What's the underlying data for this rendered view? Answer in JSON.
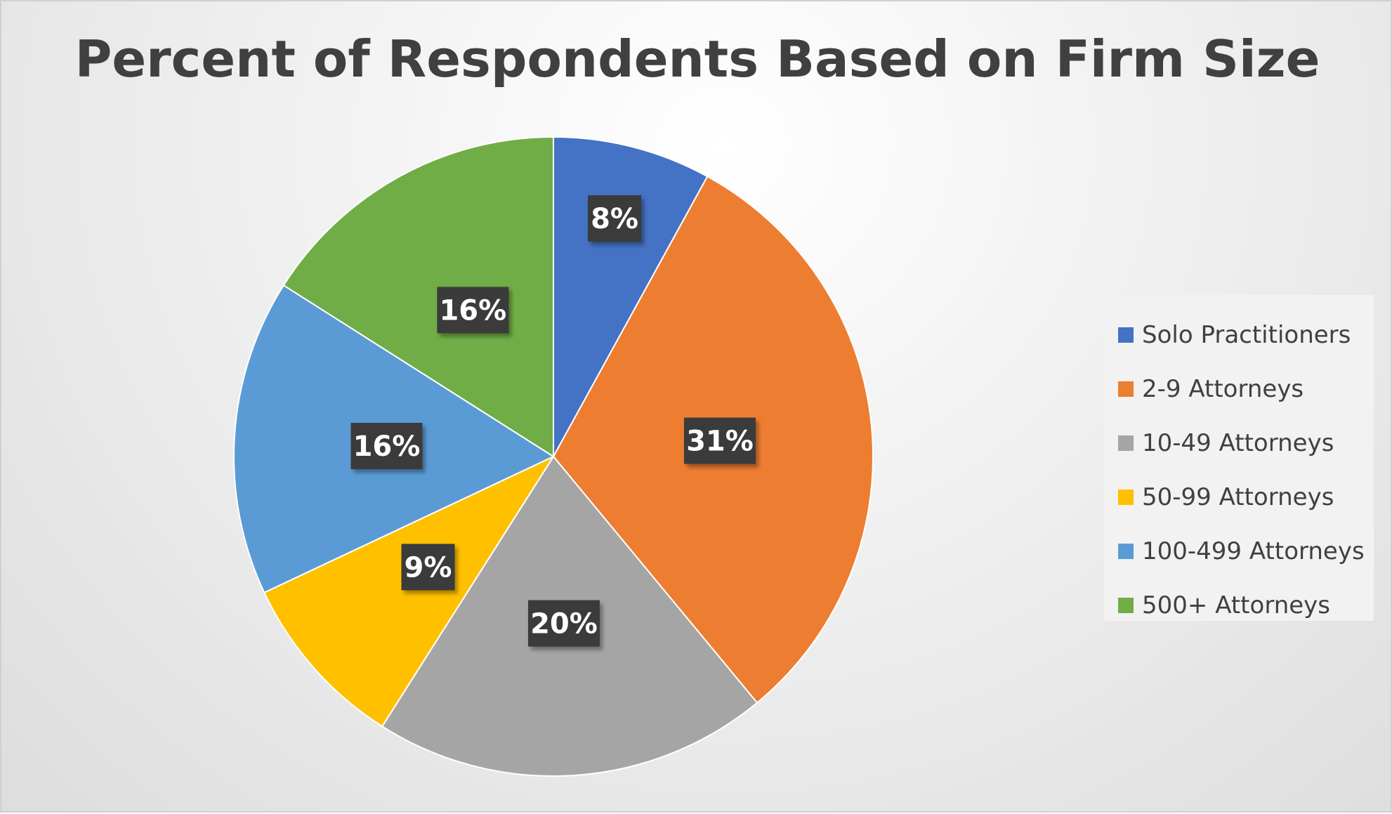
{
  "chart_data": {
    "type": "pie",
    "title": "Percent of Respondents Based on Firm Size",
    "legend_position": "right",
    "categories": [
      "Solo Practitioners",
      "2-9 Attorneys",
      "10-49 Attorneys",
      "50-99 Attorneys",
      "100-499 Attorneys",
      "500+ Attorneys"
    ],
    "values": [
      8,
      31,
      20,
      9,
      16,
      16
    ],
    "labels": [
      "8%",
      "31%",
      "20%",
      "9%",
      "16%",
      "16%"
    ],
    "colors": [
      "#4472C4",
      "#ED7D31",
      "#A5A5A5",
      "#FFC000",
      "#5B9BD5",
      "#70AD47"
    ]
  }
}
